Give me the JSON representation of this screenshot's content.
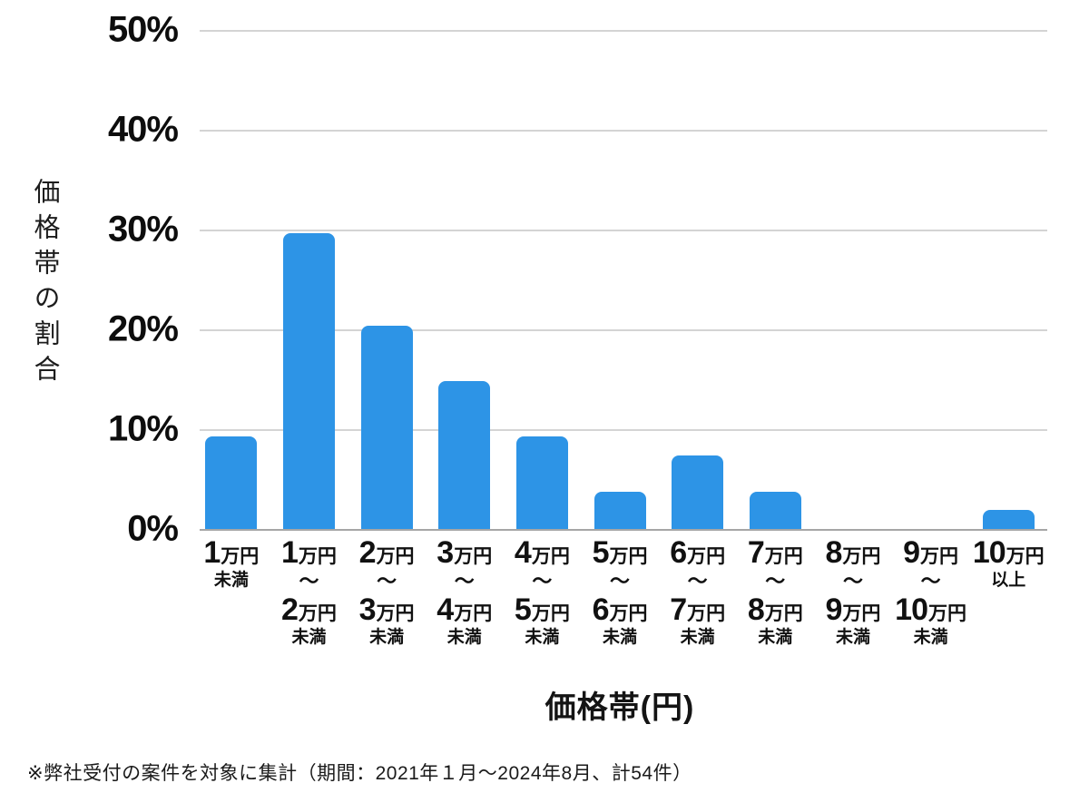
{
  "chart_data": {
    "type": "bar",
    "title": "",
    "ylabel": "価格帯の割合",
    "xlabel": "価格帯(円)",
    "ylim": [
      0,
      50
    ],
    "ytick_step_percent": 10,
    "yticks": [
      "50%",
      "40%",
      "30%",
      "20%",
      "10%",
      "0%"
    ],
    "grid": true,
    "legend_position": "none",
    "bar_color": "#2D94E6",
    "categories": [
      [
        "1万円",
        "未満"
      ],
      [
        "1万円",
        "〜",
        "2万円",
        "未満"
      ],
      [
        "2万円",
        "〜",
        "3万円",
        "未満"
      ],
      [
        "3万円",
        "〜",
        "4万円",
        "未満"
      ],
      [
        "4万円",
        "〜",
        "5万円",
        "未満"
      ],
      [
        "5万円",
        "〜",
        "6万円",
        "未満"
      ],
      [
        "6万円",
        "〜",
        "7万円",
        "未満"
      ],
      [
        "7万円",
        "〜",
        "8万円",
        "未満"
      ],
      [
        "8万円",
        "〜",
        "9万円",
        "未満"
      ],
      [
        "9万円",
        "〜",
        "10万円",
        "未満"
      ],
      [
        "10万円",
        "以上"
      ]
    ],
    "values": [
      9.3,
      29.6,
      20.4,
      14.8,
      9.3,
      3.7,
      7.4,
      3.7,
      0,
      0,
      1.9
    ]
  },
  "footnote": "※弊社受付の案件を対象に集計（期間：2021年１月〜2024年8月、計54件）"
}
